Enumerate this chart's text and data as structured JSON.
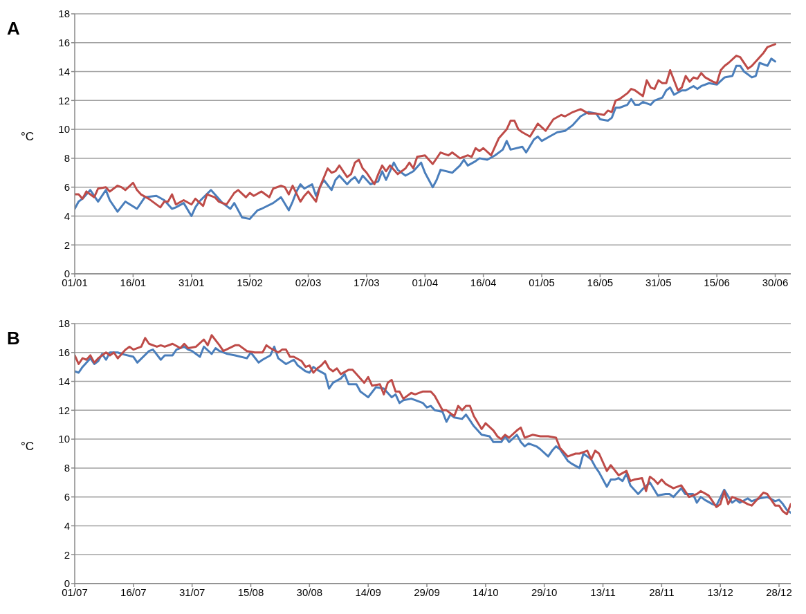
{
  "chart_data": [
    {
      "type": "line",
      "title": "A",
      "ylabel": "°C",
      "marker": "none",
      "grid": "y",
      "xlim": [
        "--01-01",
        "--07-04"
      ],
      "ylim": [
        0,
        18
      ],
      "yticks": [
        0,
        2,
        4,
        6,
        8,
        10,
        12,
        14,
        16,
        18
      ],
      "xticks": [
        {
          "value": "--01-01",
          "label": "01/01"
        },
        {
          "value": "--01-16",
          "label": "16/01"
        },
        {
          "value": "--01-31",
          "label": "31/01"
        },
        {
          "value": "--02-15",
          "label": "15/02"
        },
        {
          "value": "--03-02",
          "label": "02/03"
        },
        {
          "value": "--03-17",
          "label": "17/03"
        },
        {
          "value": "--04-01",
          "label": "01/04"
        },
        {
          "value": "--04-16",
          "label": "16/04"
        },
        {
          "value": "--05-01",
          "label": "01/05"
        },
        {
          "value": "--05-16",
          "label": "16/05"
        },
        {
          "value": "--05-31",
          "label": "31/05"
        },
        {
          "value": "--06-15",
          "label": "15/06"
        },
        {
          "value": "--06-30",
          "label": "30/06"
        }
      ],
      "series": [
        {
          "color": "#4a7ebb",
          "x": [
            "--01-01",
            "--01-02",
            "--01-03",
            "--01-05",
            "--01-07",
            "--01-09",
            "--01-10",
            "--01-12",
            "--01-14",
            "--01-17",
            "--01-19",
            "--01-22",
            "--01-24",
            "--01-26",
            "--01-27",
            "--01-29",
            "--01-31",
            "--02-01",
            "--02-02",
            "--02-05",
            "--02-06",
            "--02-08",
            "--02-10",
            "--02-11",
            "--02-13",
            "--02-15",
            "--02-17",
            "--02-18",
            "--02-21",
            "--02-23",
            "--02-25",
            "--02-26",
            "--02-27",
            "--02-28",
            "--03-01",
            "--03-03",
            "--03-04",
            "--03-05",
            "--03-06",
            "--03-08",
            "--03-09",
            "--03-10",
            "--03-12",
            "--03-13",
            "--03-14",
            "--03-15",
            "--03-16",
            "--03-18",
            "--03-20",
            "--03-21",
            "--03-22",
            "--03-24",
            "--03-25",
            "--03-27",
            "--03-29",
            "--03-31",
            "--04-01",
            "--04-03",
            "--04-04",
            "--04-05",
            "--04-08",
            "--04-10",
            "--04-11",
            "--04-12",
            "--04-14",
            "--04-15",
            "--04-17",
            "--04-19",
            "--04-21",
            "--04-22",
            "--04-23",
            "--04-26",
            "--04-27",
            "--04-29",
            "--04-30",
            "--05-01",
            "--05-03",
            "--05-05",
            "--05-07",
            "--05-09",
            "--05-11",
            "--05-13",
            "--05-15",
            "--05-16",
            "--05-18",
            "--05-19",
            "--05-20",
            "--05-21",
            "--05-23",
            "--05-24",
            "--05-25",
            "--05-26",
            "--05-27",
            "--05-29",
            "--05-30",
            "--06-01",
            "--06-02",
            "--06-03",
            "--06-04",
            "--06-06",
            "--06-07",
            "--06-09",
            "--06-10",
            "--06-11",
            "--06-13",
            "--06-15",
            "--06-17",
            "--06-19",
            "--06-20",
            "--06-21",
            "--06-22",
            "--06-24",
            "--06-25",
            "--06-26",
            "--06-28",
            "--06-29",
            "--06-30"
          ],
          "values": [
            4.5,
            5.0,
            5.2,
            5.8,
            5.0,
            5.8,
            5.1,
            4.3,
            5.0,
            4.5,
            5.3,
            5.4,
            5.1,
            4.5,
            4.6,
            4.9,
            4.0,
            4.6,
            5.0,
            5.8,
            5.5,
            4.9,
            4.5,
            4.9,
            3.9,
            3.8,
            4.4,
            4.5,
            4.9,
            5.3,
            4.4,
            5.0,
            5.7,
            6.2,
            5.9,
            6.2,
            5.4,
            6.0,
            6.5,
            5.8,
            6.5,
            6.8,
            6.2,
            6.5,
            6.7,
            6.3,
            6.8,
            6.2,
            6.4,
            7.1,
            6.5,
            7.7,
            7.2,
            6.8,
            7.1,
            7.7,
            7.0,
            6.0,
            6.5,
            7.2,
            7.0,
            7.5,
            7.9,
            7.5,
            7.8,
            8.0,
            7.9,
            8.2,
            8.6,
            9.2,
            8.6,
            8.8,
            8.4,
            9.3,
            9.5,
            9.2,
            9.5,
            9.8,
            9.9,
            10.3,
            10.9,
            11.2,
            11.1,
            10.7,
            10.6,
            10.8,
            11.5,
            11.5,
            11.7,
            12.1,
            11.7,
            11.7,
            11.9,
            11.7,
            12.0,
            12.2,
            12.7,
            12.9,
            12.4,
            12.7,
            12.7,
            13.0,
            12.8,
            13.0,
            13.2,
            13.1,
            13.6,
            13.7,
            14.4,
            14.4,
            14.0,
            13.6,
            13.7,
            14.6,
            14.4,
            14.9,
            14.7
          ]
        },
        {
          "color": "#be4b48",
          "x": [
            "--01-01",
            "--01-02",
            "--01-03",
            "--01-04",
            "--01-06",
            "--01-07",
            "--01-09",
            "--01-10",
            "--01-12",
            "--01-13",
            "--01-14",
            "--01-16",
            "--01-17",
            "--01-18",
            "--01-20",
            "--01-23",
            "--01-24",
            "--01-25",
            "--01-26",
            "--01-27",
            "--01-29",
            "--01-31",
            "--02-01",
            "--02-03",
            "--02-04",
            "--02-06",
            "--02-07",
            "--02-09",
            "--02-11",
            "--02-12",
            "--02-14",
            "--02-15",
            "--02-16",
            "--02-18",
            "--02-20",
            "--02-21",
            "--02-23",
            "--02-24",
            "--02-25",
            "--02-26",
            "--02-28",
            "--03-01",
            "--03-02",
            "--03-04",
            "--03-05",
            "--03-07",
            "--03-08",
            "--03-09",
            "--03-10",
            "--03-12",
            "--03-13",
            "--03-14",
            "--03-15",
            "--03-16",
            "--03-17",
            "--03-19",
            "--03-20",
            "--03-21",
            "--03-22",
            "--03-23",
            "--03-25",
            "--03-27",
            "--03-28",
            "--03-29",
            "--03-30",
            "--04-01",
            "--04-03",
            "--04-05",
            "--04-07",
            "--04-08",
            "--04-10",
            "--04-12",
            "--04-13",
            "--04-14",
            "--04-15",
            "--04-16",
            "--04-18",
            "--04-20",
            "--04-22",
            "--04-23",
            "--04-24",
            "--04-25",
            "--04-26",
            "--04-28",
            "--04-30",
            "--05-02",
            "--05-04",
            "--05-06",
            "--05-07",
            "--05-09",
            "--05-11",
            "--05-13",
            "--05-15",
            "--05-17",
            "--05-18",
            "--05-19",
            "--05-20",
            "--05-21",
            "--05-23",
            "--05-24",
            "--05-25",
            "--05-27",
            "--05-28",
            "--05-29",
            "--05-30",
            "--05-31",
            "--06-01",
            "--06-02",
            "--06-03",
            "--06-05",
            "--06-06",
            "--06-07",
            "--06-08",
            "--06-09",
            "--06-10",
            "--06-11",
            "--06-12",
            "--06-14",
            "--06-15",
            "--06-16",
            "--06-17",
            "--06-18",
            "--06-20",
            "--06-21",
            "--06-23",
            "--06-24",
            "--06-26",
            "--06-27",
            "--06-28",
            "--06-30"
          ],
          "values": [
            5.5,
            5.5,
            5.2,
            5.7,
            5.3,
            5.9,
            6.0,
            5.7,
            6.1,
            6.0,
            5.8,
            6.3,
            5.8,
            5.5,
            5.2,
            4.6,
            5.0,
            5.0,
            5.5,
            4.8,
            5.1,
            4.8,
            5.2,
            4.7,
            5.5,
            5.3,
            5.0,
            4.8,
            5.6,
            5.8,
            5.3,
            5.6,
            5.4,
            5.7,
            5.3,
            5.9,
            6.1,
            6.0,
            5.5,
            6.1,
            5.0,
            5.4,
            5.7,
            5.0,
            6.0,
            7.3,
            7.0,
            7.1,
            7.5,
            6.7,
            6.9,
            7.7,
            7.9,
            7.3,
            7.0,
            6.2,
            6.9,
            7.5,
            7.1,
            7.5,
            6.9,
            7.3,
            7.7,
            7.3,
            8.1,
            8.2,
            7.6,
            8.4,
            8.2,
            8.4,
            8.0,
            8.2,
            8.1,
            8.7,
            8.5,
            8.7,
            8.2,
            9.4,
            10.0,
            10.6,
            10.6,
            10.0,
            9.8,
            9.5,
            10.4,
            9.9,
            10.7,
            11.0,
            10.9,
            11.2,
            11.4,
            11.1,
            11.1,
            11.0,
            11.3,
            11.2,
            12.0,
            12.1,
            12.5,
            12.8,
            12.7,
            12.3,
            13.4,
            12.9,
            12.8,
            13.4,
            13.2,
            13.2,
            14.1,
            12.7,
            12.9,
            13.7,
            13.3,
            13.6,
            13.5,
            13.9,
            13.6,
            13.3,
            13.2,
            14.1,
            14.4,
            14.6,
            15.1,
            15.0,
            14.2,
            14.4,
            15.0,
            15.3,
            15.7,
            15.9
          ]
        }
      ]
    },
    {
      "type": "line",
      "title": "B",
      "ylabel": "°C",
      "marker": "none",
      "grid": "y",
      "xlim": [
        "--07-01",
        "--12-31"
      ],
      "ylim": [
        0,
        18
      ],
      "yticks": [
        0,
        2,
        4,
        6,
        8,
        10,
        12,
        14,
        16,
        18
      ],
      "xticks": [
        {
          "value": "--07-01",
          "label": "01/07"
        },
        {
          "value": "--07-16",
          "label": "16/07"
        },
        {
          "value": "--07-31",
          "label": "31/07"
        },
        {
          "value": "--08-15",
          "label": "15/08"
        },
        {
          "value": "--08-30",
          "label": "30/08"
        },
        {
          "value": "--09-14",
          "label": "14/09"
        },
        {
          "value": "--09-29",
          "label": "29/09"
        },
        {
          "value": "--10-14",
          "label": "14/10"
        },
        {
          "value": "--10-29",
          "label": "29/10"
        },
        {
          "value": "--11-13",
          "label": "13/11"
        },
        {
          "value": "--11-28",
          "label": "28/11"
        },
        {
          "value": "--12-13",
          "label": "13/12"
        },
        {
          "value": "--12-28",
          "label": "28/12"
        }
      ],
      "series": [
        {
          "color": "#4a7ebb",
          "x": [
            "--07-01",
            "--07-02",
            "--07-03",
            "--07-05",
            "--07-06",
            "--07-07",
            "--07-08",
            "--07-09",
            "--07-10",
            "--07-12",
            "--07-13",
            "--07-16",
            "--07-17",
            "--07-20",
            "--07-21",
            "--07-23",
            "--07-24",
            "--07-26",
            "--07-27",
            "--07-29",
            "--07-30",
            "--07-31",
            "--08-02",
            "--08-03",
            "--08-05",
            "--08-06",
            "--08-07",
            "--08-09",
            "--08-11",
            "--08-14",
            "--08-15",
            "--08-17",
            "--08-18",
            "--08-20",
            "--08-21",
            "--08-22",
            "--08-24",
            "--08-26",
            "--08-27",
            "--08-29",
            "--08-30",
            "--08-31",
            "--09-01",
            "--09-03",
            "--09-04",
            "--09-05",
            "--09-07",
            "--09-08",
            "--09-09",
            "--09-11",
            "--09-12",
            "--09-13",
            "--09-14",
            "--09-16",
            "--09-18",
            "--09-20",
            "--09-21",
            "--09-22",
            "--09-23",
            "--09-25",
            "--09-26",
            "--09-28",
            "--09-29",
            "--09-30",
            "--10-01",
            "--10-03",
            "--10-04",
            "--10-05",
            "--10-06",
            "--10-08",
            "--10-09",
            "--10-10",
            "--10-11",
            "--10-13",
            "--10-15",
            "--10-16",
            "--10-18",
            "--10-19",
            "--10-20",
            "--10-22",
            "--10-23",
            "--10-24",
            "--10-25",
            "--10-27",
            "--10-28",
            "--10-30",
            "--10-31",
            "--11-01",
            "--11-02",
            "--11-04",
            "--11-05",
            "--11-07",
            "--11-08",
            "--11-10",
            "--11-11",
            "--11-12",
            "--11-14",
            "--11-15",
            "--11-16",
            "--11-17",
            "--11-18",
            "--11-19",
            "--11-20",
            "--11-22",
            "--11-23",
            "--11-25",
            "--11-27",
            "--11-29",
            "--11-30",
            "--12-01",
            "--12-03",
            "--12-04",
            "--12-06",
            "--12-07",
            "--12-08",
            "--12-09",
            "--12-11",
            "--12-12",
            "--12-14",
            "--12-16",
            "--12-17",
            "--12-18",
            "--12-20",
            "--12-21",
            "--12-23",
            "--12-25",
            "--12-27",
            "--12-28",
            "--12-29",
            "--12-30",
            "--12-31"
          ],
          "values": [
            14.7,
            14.6,
            15.0,
            15.6,
            15.2,
            15.4,
            15.9,
            15.5,
            16.0,
            16.0,
            15.9,
            15.7,
            15.3,
            16.1,
            16.2,
            15.5,
            15.8,
            15.8,
            16.2,
            16.4,
            16.2,
            16.1,
            15.7,
            16.4,
            15.9,
            16.3,
            16.1,
            15.9,
            15.8,
            15.6,
            16.0,
            15.3,
            15.5,
            15.8,
            16.4,
            15.6,
            15.2,
            15.5,
            15.1,
            14.7,
            14.6,
            15.0,
            14.8,
            14.5,
            13.5,
            13.9,
            14.2,
            14.5,
            13.8,
            13.8,
            13.3,
            13.1,
            12.9,
            13.6,
            13.5,
            12.9,
            13.1,
            12.5,
            12.7,
            12.8,
            12.7,
            12.5,
            12.2,
            12.3,
            12.0,
            11.9,
            11.2,
            11.7,
            11.5,
            11.4,
            11.7,
            11.3,
            10.9,
            10.3,
            10.2,
            9.8,
            9.8,
            10.2,
            9.8,
            10.3,
            9.8,
            9.5,
            9.7,
            9.5,
            9.3,
            8.8,
            9.2,
            9.5,
            9.3,
            8.5,
            8.3,
            8.0,
            9.0,
            8.6,
            8.1,
            7.7,
            6.7,
            7.2,
            7.2,
            7.3,
            7.1,
            7.6,
            6.8,
            6.2,
            6.5,
            7.0,
            6.1,
            6.2,
            6.2,
            6.0,
            6.6,
            6.2,
            6.2,
            5.6,
            6.0,
            5.8,
            5.5,
            5.4,
            6.5,
            5.6,
            5.8,
            5.6,
            5.9,
            5.7,
            5.9,
            6.0,
            5.7,
            5.8,
            5.5,
            5.1,
            4.9
          ]
        },
        {
          "color": "#be4b48",
          "x": [
            "--07-01",
            "--07-02",
            "--07-03",
            "--07-04",
            "--07-05",
            "--07-06",
            "--07-07",
            "--07-09",
            "--07-10",
            "--07-11",
            "--07-12",
            "--07-14",
            "--07-15",
            "--07-16",
            "--07-18",
            "--07-19",
            "--07-20",
            "--07-22",
            "--07-23",
            "--07-24",
            "--07-26",
            "--07-28",
            "--07-29",
            "--07-30",
            "--08-01",
            "--08-03",
            "--08-04",
            "--08-05",
            "--08-07",
            "--08-08",
            "--08-11",
            "--08-12",
            "--08-14",
            "--08-16",
            "--08-18",
            "--08-19",
            "--08-20",
            "--08-22",
            "--08-23",
            "--08-24",
            "--08-25",
            "--08-26",
            "--08-28",
            "--08-29",
            "--08-30",
            "--08-31",
            "--09-01",
            "--09-02",
            "--09-03",
            "--09-04",
            "--09-05",
            "--09-06",
            "--09-07",
            "--09-09",
            "--09-10",
            "--09-11",
            "--09-13",
            "--09-14",
            "--09-15",
            "--09-17",
            "--09-18",
            "--09-19",
            "--09-20",
            "--09-21",
            "--09-22",
            "--09-23",
            "--09-25",
            "--09-26",
            "--09-28",
            "--09-30",
            "--10-01",
            "--10-03",
            "--10-04",
            "--10-06",
            "--10-07",
            "--10-08",
            "--10-09",
            "--10-10",
            "--10-11",
            "--10-13",
            "--10-14",
            "--10-16",
            "--10-17",
            "--10-18",
            "--10-19",
            "--10-20",
            "--10-22",
            "--10-23",
            "--10-24",
            "--10-26",
            "--10-28",
            "--10-29",
            "--10-30",
            "--11-01",
            "--11-02",
            "--11-04",
            "--11-06",
            "--11-07",
            "--11-09",
            "--11-10",
            "--11-11",
            "--11-12",
            "--11-14",
            "--11-15",
            "--11-17",
            "--11-19",
            "--11-20",
            "--11-21",
            "--11-23",
            "--11-24",
            "--11-25",
            "--11-26",
            "--11-27",
            "--11-28",
            "--11-29",
            "--12-01",
            "--12-03",
            "--12-05",
            "--12-07",
            "--12-08",
            "--12-10",
            "--12-11",
            "--12-12",
            "--12-13",
            "--12-14",
            "--12-15",
            "--12-16",
            "--12-18",
            "--12-20",
            "--12-21",
            "--12-24",
            "--12-25",
            "--12-27",
            "--12-28",
            "--12-29",
            "--12-30",
            "--12-31"
          ],
          "values": [
            15.8,
            15.2,
            15.6,
            15.5,
            15.8,
            15.3,
            15.6,
            16.0,
            15.8,
            16.0,
            15.6,
            16.2,
            16.4,
            16.2,
            16.4,
            17.0,
            16.6,
            16.4,
            16.5,
            16.4,
            16.6,
            16.3,
            16.6,
            16.3,
            16.4,
            16.9,
            16.5,
            17.2,
            16.5,
            16.1,
            16.5,
            16.5,
            16.1,
            16.0,
            16.0,
            16.5,
            16.3,
            16.0,
            16.2,
            16.2,
            15.7,
            15.7,
            15.4,
            15.0,
            15.1,
            14.6,
            14.9,
            15.1,
            15.4,
            14.9,
            14.7,
            14.9,
            14.5,
            14.8,
            14.8,
            14.5,
            13.9,
            14.3,
            13.7,
            13.8,
            13.1,
            13.9,
            14.1,
            13.3,
            13.3,
            12.8,
            13.2,
            13.1,
            13.3,
            13.3,
            13.0,
            12.0,
            12.0,
            11.6,
            12.3,
            12.0,
            12.3,
            12.3,
            11.6,
            10.7,
            11.1,
            10.6,
            10.2,
            10.0,
            10.3,
            10.1,
            10.6,
            10.8,
            10.1,
            10.3,
            10.2,
            10.2,
            10.2,
            10.1,
            9.4,
            8.8,
            9.0,
            9.0,
            9.2,
            8.6,
            9.2,
            9.0,
            7.8,
            8.2,
            7.5,
            7.8,
            7.1,
            7.2,
            7.3,
            6.4,
            7.4,
            7.2,
            6.9,
            7.2,
            6.9,
            6.6,
            6.8,
            6.0,
            6.2,
            6.4,
            6.1,
            5.7,
            5.3,
            5.5,
            6.4,
            5.5,
            6.0,
            5.8,
            5.5,
            5.4,
            6.3,
            6.2,
            5.4,
            5.4,
            5.0,
            4.8,
            5.5
          ]
        }
      ]
    }
  ]
}
